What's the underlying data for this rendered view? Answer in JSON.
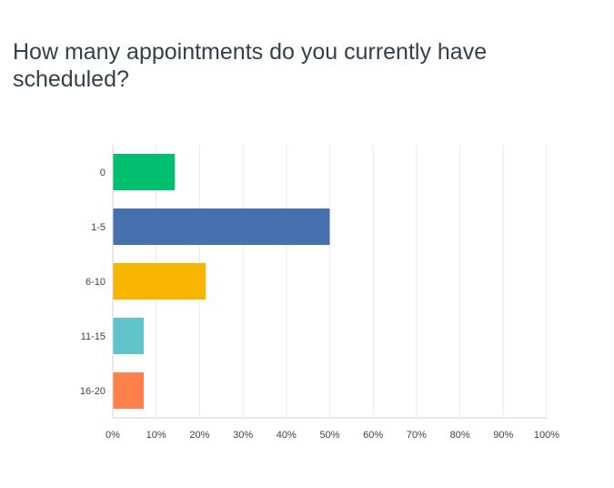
{
  "title": "How many appointments do you currently have scheduled?",
  "chart_data": {
    "type": "bar",
    "orientation": "horizontal",
    "categories": [
      "0",
      "1-5",
      "6-10",
      "11-15",
      "16-20"
    ],
    "values": [
      14.29,
      50.0,
      21.43,
      7.14,
      7.14
    ],
    "colors": [
      "#00bf6f",
      "#4670ae",
      "#f7b500",
      "#62c4cb",
      "#ff8049"
    ],
    "xlim": [
      0,
      100
    ],
    "x_ticks": [
      "0%",
      "10%",
      "20%",
      "30%",
      "40%",
      "50%",
      "60%",
      "70%",
      "80%",
      "90%",
      "100%"
    ],
    "grid": true,
    "legend": "none"
  }
}
